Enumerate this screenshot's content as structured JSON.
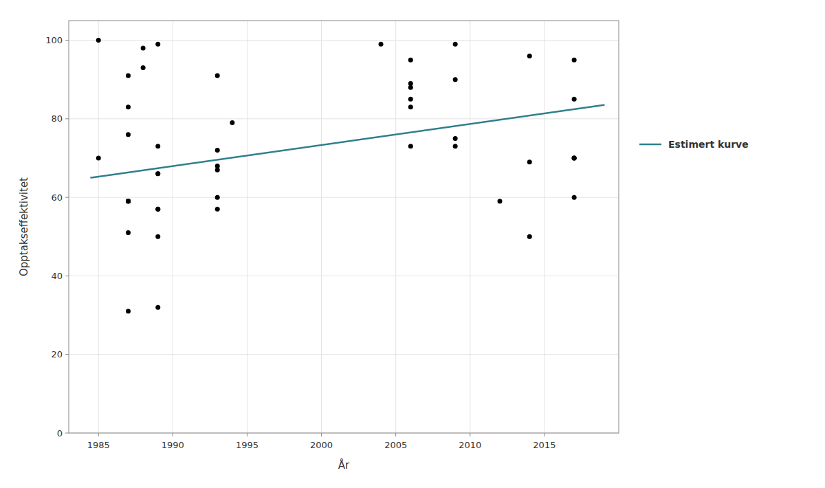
{
  "chart_data": {
    "type": "scatter",
    "xlabel": "År",
    "ylabel": "Opptakseffektivitet",
    "xlim": [
      1983,
      2020
    ],
    "ylim": [
      0,
      105
    ],
    "xticks": [
      1985,
      1990,
      1995,
      2000,
      2005,
      2010,
      2015
    ],
    "yticks": [
      0,
      20,
      40,
      60,
      80,
      100
    ],
    "grid": true,
    "legend": "right",
    "series": [
      {
        "type": "scatter",
        "color": "#000000",
        "x": [
          1985,
          1985,
          1987,
          1987,
          1987,
          1987,
          1987,
          1987,
          1987,
          1987,
          1987,
          1987,
          1988,
          1988,
          1989,
          1989,
          1989,
          1989,
          1989,
          1989,
          1989,
          1989,
          1993,
          1993,
          1993,
          1993,
          1993,
          1993,
          1994,
          2004,
          2006,
          2006,
          2006,
          2006,
          2006,
          2006,
          2009,
          2009,
          2009,
          2009,
          2012,
          2014,
          2014,
          2014,
          2017,
          2017,
          2017,
          2017,
          2017,
          2017
        ],
        "values": [
          100,
          70,
          91,
          83,
          76,
          59,
          59,
          59,
          59,
          59,
          51,
          31,
          98,
          93,
          99,
          73,
          66,
          66,
          57,
          57,
          50,
          32,
          91,
          72,
          68,
          67,
          60,
          57,
          79,
          99,
          95,
          89,
          88,
          85,
          83,
          73,
          99,
          90,
          75,
          73,
          59,
          96,
          69,
          50,
          95,
          85,
          70,
          70,
          70,
          60
        ]
      },
      {
        "type": "line",
        "name": "Estimert kurve",
        "color": "#2e7f8c",
        "x": [
          1984.5,
          2019
        ],
        "values": [
          65.0,
          83.5
        ]
      }
    ]
  }
}
